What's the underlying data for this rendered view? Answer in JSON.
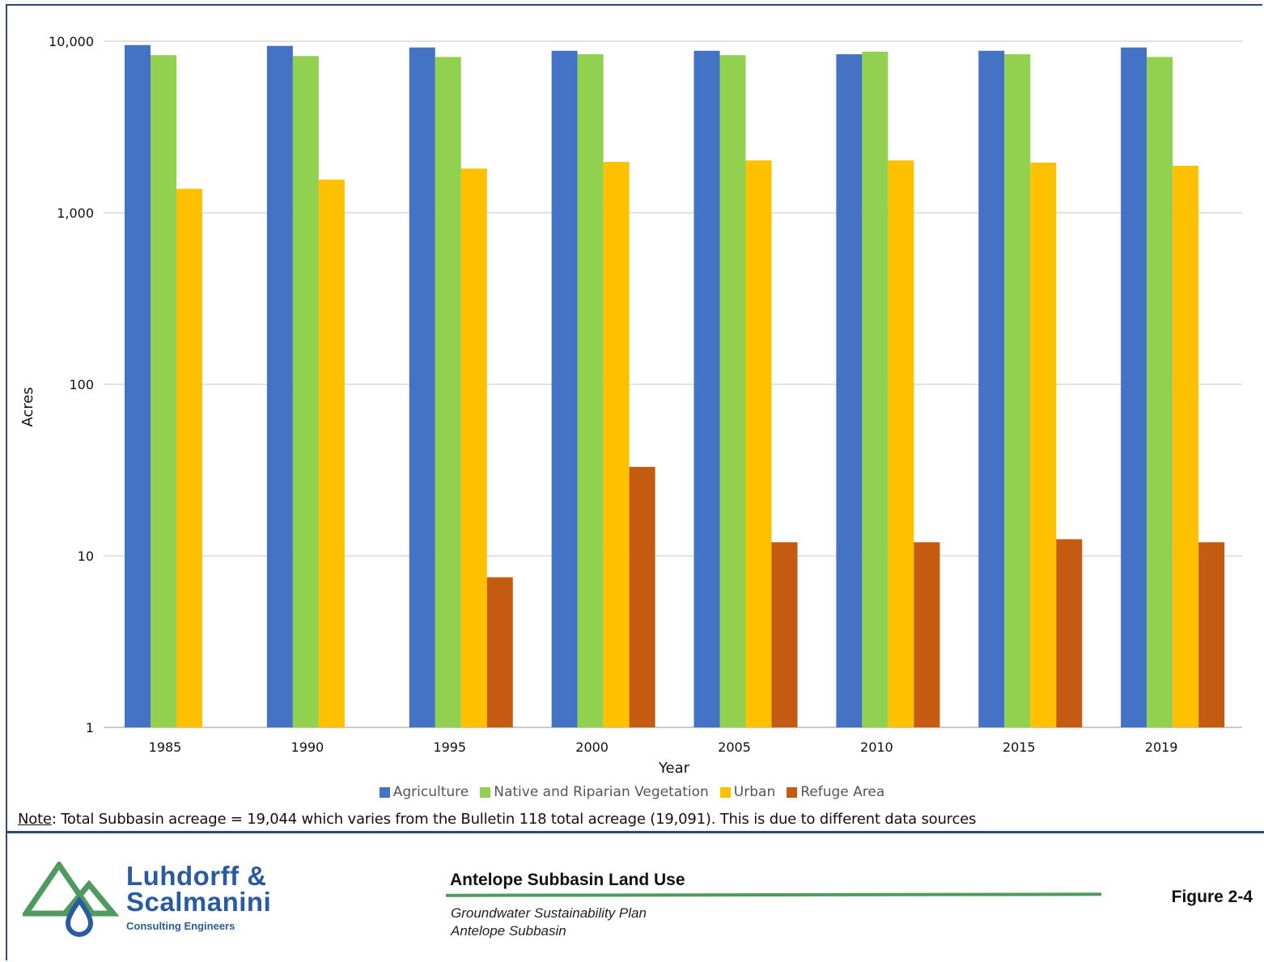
{
  "chart_data": {
    "type": "bar",
    "scale": "log",
    "ylim": [
      1,
      10000
    ],
    "yticks": [
      "1",
      "10",
      "100",
      "1,000",
      "10,000"
    ],
    "ytick_values": [
      1,
      10,
      100,
      1000,
      10000
    ],
    "xlabel": "Year",
    "ylabel": "Acres",
    "grid": true,
    "legend_position": "bottom",
    "categories": [
      "1985",
      "1990",
      "1995",
      "2000",
      "2005",
      "2010",
      "2015",
      "2019"
    ],
    "series": [
      {
        "name": "Agriculture",
        "color": "#4472c4",
        "values": [
          9500,
          9400,
          9200,
          8800,
          8800,
          8400,
          8800,
          9200
        ]
      },
      {
        "name": "Native and Riparian Vegetation",
        "color": "#92d050",
        "values": [
          8300,
          8200,
          8100,
          8400,
          8300,
          8700,
          8400,
          8100
        ]
      },
      {
        "name": "Urban",
        "color": "#ffc000",
        "values": [
          1380,
          1560,
          1810,
          1980,
          2020,
          2020,
          1960,
          1880
        ]
      },
      {
        "name": "Refuge Area",
        "color": "#c55a11",
        "values": [
          null,
          null,
          7.5,
          33,
          12,
          12,
          12.5,
          12
        ]
      }
    ]
  },
  "note": {
    "label": "Note",
    "text": ": Total Subbasin acreage = 19,044 which varies from the Bulletin 118 total acreage (19,091). This is due to different data sources"
  },
  "footer": {
    "logo_line1": "Luhdorff &",
    "logo_line2": "Scalmanini",
    "logo_sub": "Consulting Engineers",
    "title": "Antelope Subbasin Land Use",
    "subtitle_line1": "Groundwater Sustainability Plan",
    "subtitle_line2": "Antelope Subbasin",
    "figure": "Figure 2-4"
  }
}
